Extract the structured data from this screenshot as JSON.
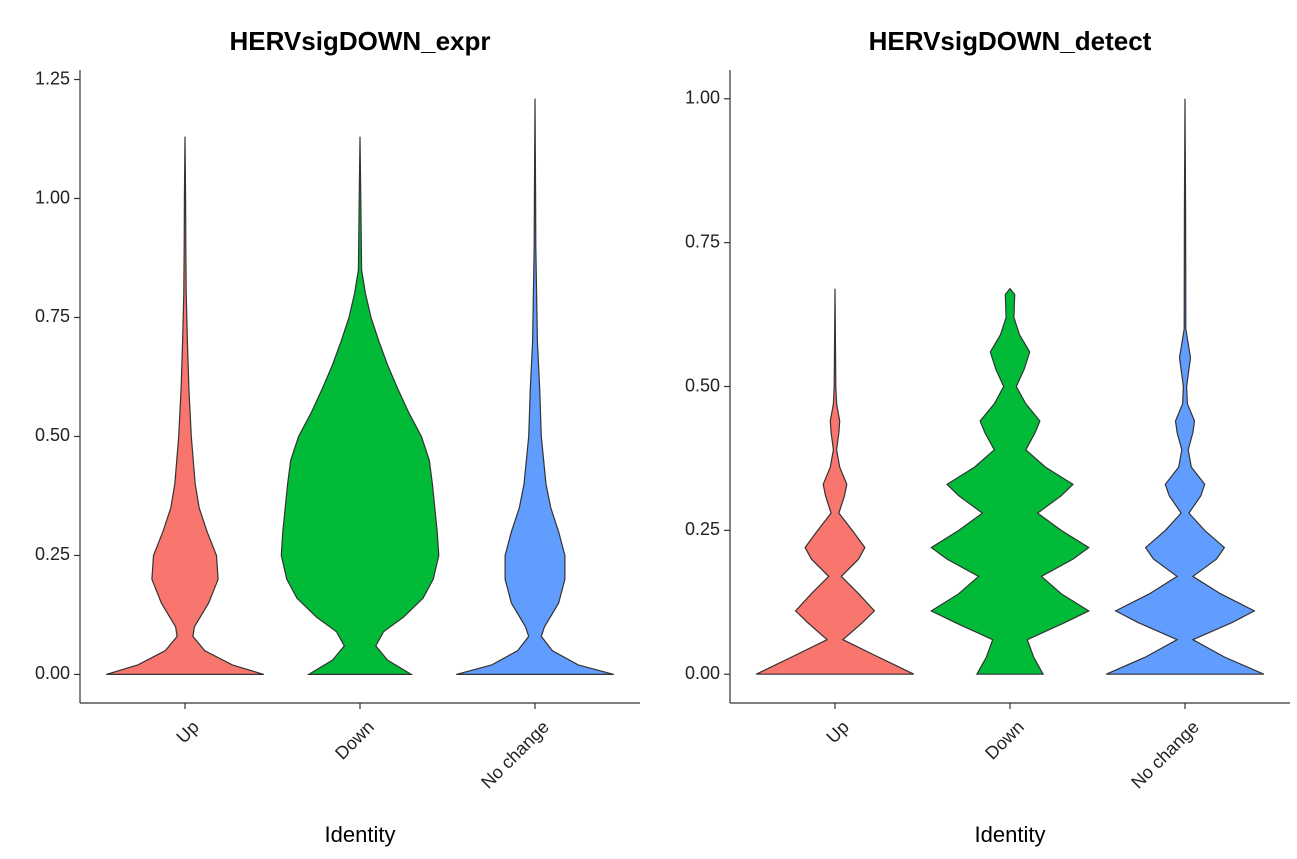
{
  "chart_data": [
    {
      "type": "violin",
      "title": "HERVsigDOWN_expr",
      "xlabel": "Identity",
      "categories": [
        "Up",
        "Down",
        "No change"
      ],
      "colors": [
        "#F8766D",
        "#00BA38",
        "#619CFF"
      ],
      "ylim": [
        -0.06,
        1.27
      ],
      "yticks": [
        {
          "value": 0,
          "label": "0.00"
        },
        {
          "value": 0.25,
          "label": "0.25"
        },
        {
          "value": 0.5,
          "label": "0.50"
        },
        {
          "value": 0.75,
          "label": "0.75"
        },
        {
          "value": 1,
          "label": "1.00"
        },
        {
          "value": 1.25,
          "label": "1.25"
        }
      ],
      "violins": [
        {
          "y": [
            0,
            0.02,
            0.05,
            0.08,
            0.1,
            0.15,
            0.2,
            0.25,
            0.3,
            0.35,
            0.4,
            0.5,
            0.6,
            0.7,
            0.8,
            0.9,
            1.0,
            1.13
          ],
          "width": [
            1,
            0.6,
            0.25,
            0.1,
            0.12,
            0.3,
            0.42,
            0.4,
            0.28,
            0.18,
            0.13,
            0.08,
            0.05,
            0.03,
            0.015,
            0.01,
            0.008,
            0
          ]
        },
        {
          "y": [
            0,
            0.03,
            0.06,
            0.09,
            0.12,
            0.16,
            0.2,
            0.25,
            0.3,
            0.35,
            0.4,
            0.45,
            0.5,
            0.55,
            0.6,
            0.65,
            0.7,
            0.75,
            0.8,
            0.85,
            1.0,
            1.13
          ],
          "width": [
            0.65,
            0.35,
            0.2,
            0.3,
            0.55,
            0.8,
            0.93,
            1,
            0.98,
            0.95,
            0.92,
            0.88,
            0.78,
            0.62,
            0.48,
            0.35,
            0.24,
            0.14,
            0.07,
            0.02,
            0.01,
            0
          ]
        },
        {
          "y": [
            0,
            0.02,
            0.05,
            0.08,
            0.1,
            0.15,
            0.2,
            0.25,
            0.3,
            0.35,
            0.4,
            0.5,
            0.6,
            0.7,
            0.8,
            0.9,
            1.0,
            1.21
          ],
          "width": [
            1,
            0.55,
            0.22,
            0.08,
            0.12,
            0.3,
            0.38,
            0.38,
            0.3,
            0.2,
            0.14,
            0.08,
            0.06,
            0.03,
            0.02,
            0.01,
            0.008,
            0
          ]
        }
      ]
    },
    {
      "type": "violin",
      "title": "HERVsigDOWN_detect",
      "xlabel": "Identity",
      "categories": [
        "Up",
        "Down",
        "No change"
      ],
      "colors": [
        "#F8766D",
        "#00BA38",
        "#619CFF"
      ],
      "ylim": [
        -0.05,
        1.05
      ],
      "yticks": [
        {
          "value": 0,
          "label": "0.00"
        },
        {
          "value": 0.25,
          "label": "0.25"
        },
        {
          "value": 0.5,
          "label": "0.50"
        },
        {
          "value": 0.75,
          "label": "0.75"
        },
        {
          "value": 1,
          "label": "1.00"
        }
      ],
      "violins": [
        {
          "y": [
            0,
            0.03,
            0.06,
            0.09,
            0.11,
            0.14,
            0.17,
            0.2,
            0.22,
            0.25,
            0.28,
            0.31,
            0.33,
            0.36,
            0.39,
            0.42,
            0.44,
            0.47,
            0.5,
            0.67
          ],
          "width": [
            1,
            0.55,
            0.1,
            0.35,
            0.5,
            0.3,
            0.08,
            0.3,
            0.38,
            0.22,
            0.05,
            0.12,
            0.15,
            0.06,
            0.02,
            0.05,
            0.06,
            0.02,
            0.01,
            0
          ]
        },
        {
          "y": [
            0,
            0.03,
            0.06,
            0.09,
            0.11,
            0.14,
            0.17,
            0.2,
            0.22,
            0.25,
            0.28,
            0.31,
            0.33,
            0.36,
            0.39,
            0.42,
            0.44,
            0.47,
            0.5,
            0.53,
            0.56,
            0.59,
            0.62,
            0.66,
            0.67
          ],
          "width": [
            0.42,
            0.3,
            0.22,
            0.7,
            1,
            0.65,
            0.4,
            0.8,
            1,
            0.65,
            0.35,
            0.65,
            0.8,
            0.45,
            0.2,
            0.32,
            0.38,
            0.2,
            0.08,
            0.18,
            0.25,
            0.12,
            0.05,
            0.06,
            0
          ]
        },
        {
          "y": [
            0,
            0.03,
            0.06,
            0.09,
            0.11,
            0.14,
            0.17,
            0.2,
            0.22,
            0.25,
            0.28,
            0.31,
            0.33,
            0.36,
            0.39,
            0.42,
            0.44,
            0.47,
            0.5,
            0.55,
            0.6,
            0.8,
            1.0
          ],
          "width": [
            1,
            0.5,
            0.1,
            0.6,
            0.88,
            0.45,
            0.1,
            0.4,
            0.5,
            0.25,
            0.05,
            0.2,
            0.25,
            0.08,
            0.04,
            0.1,
            0.12,
            0.03,
            0.02,
            0.07,
            0.01,
            0.008,
            0
          ]
        }
      ]
    }
  ]
}
